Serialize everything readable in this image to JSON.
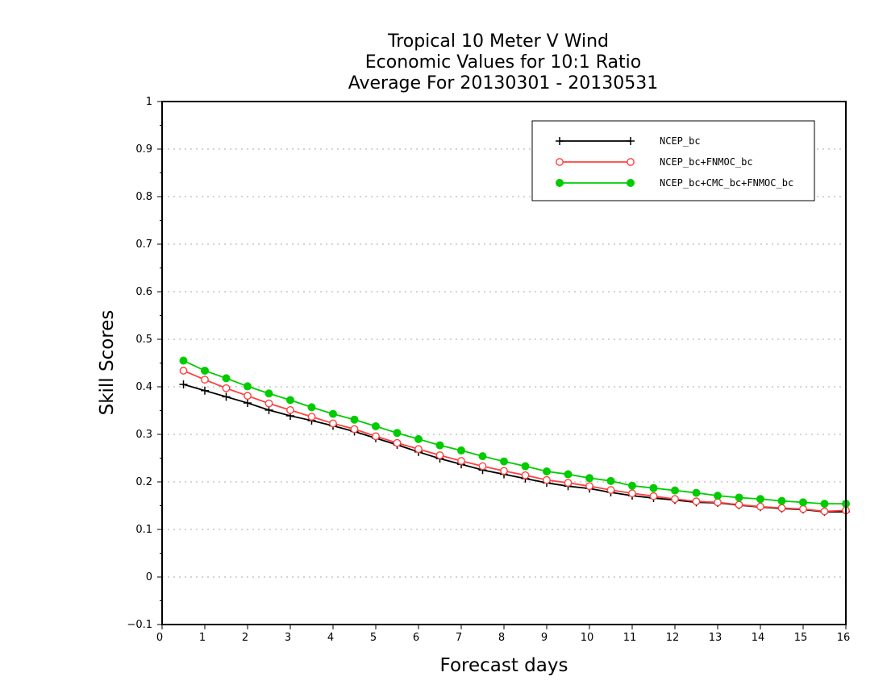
{
  "chart_data": {
    "type": "line",
    "title_lines": [
      "Tropical 10 Meter V Wind",
      "Economic Values for 10:1 Ratio",
      "Average For 20130301 - 20130531"
    ],
    "xlabel": "Forecast days",
    "ylabel": "Skill Scores",
    "xlim": [
      0,
      16
    ],
    "ylim": [
      -0.1,
      1
    ],
    "x_ticks": [
      "0",
      "1",
      "2",
      "3",
      "4",
      "5",
      "6",
      "7",
      "8",
      "9",
      "10",
      "11",
      "12",
      "13",
      "14",
      "15",
      "16"
    ],
    "y_ticks": [
      "−0.1",
      "0",
      "0.1",
      "0.2",
      "0.3",
      "0.4",
      "0.5",
      "0.6",
      "0.7",
      "0.8",
      "0.9",
      "1"
    ],
    "grid": true,
    "legend_position": "top-right",
    "x": [
      0.5,
      1,
      1.5,
      2,
      2.5,
      3,
      3.5,
      4,
      4.5,
      5,
      5.5,
      6,
      6.5,
      7,
      7.5,
      8,
      8.5,
      9,
      9.5,
      10,
      10.5,
      11,
      11.5,
      12,
      12.5,
      13,
      13.5,
      14,
      14.5,
      15,
      15.5,
      16
    ],
    "series": [
      {
        "name": "NCEP_bc",
        "color": "#000000",
        "marker": "plus",
        "values": [
          0.405,
          0.392,
          0.379,
          0.366,
          0.351,
          0.339,
          0.329,
          0.318,
          0.306,
          0.292,
          0.278,
          0.263,
          0.249,
          0.237,
          0.225,
          0.216,
          0.207,
          0.198,
          0.191,
          0.186,
          0.178,
          0.171,
          0.166,
          0.162,
          0.157,
          0.156,
          0.151,
          0.147,
          0.144,
          0.142,
          0.137,
          0.137
        ]
      },
      {
        "name": "NCEP_bc+FNMOC_bc",
        "color": "#ff4040",
        "marker": "open-circle",
        "values": [
          0.434,
          0.415,
          0.397,
          0.381,
          0.365,
          0.351,
          0.337,
          0.323,
          0.311,
          0.296,
          0.282,
          0.269,
          0.256,
          0.244,
          0.233,
          0.223,
          0.214,
          0.204,
          0.198,
          0.191,
          0.183,
          0.176,
          0.17,
          0.164,
          0.159,
          0.157,
          0.152,
          0.148,
          0.145,
          0.143,
          0.138,
          0.14
        ]
      },
      {
        "name": "NCEP_bc+CMC_bc+FNMOC_bc",
        "color": "#00cc00",
        "marker": "filled-circle",
        "values": [
          0.455,
          0.434,
          0.418,
          0.401,
          0.386,
          0.372,
          0.357,
          0.343,
          0.331,
          0.317,
          0.303,
          0.29,
          0.277,
          0.266,
          0.254,
          0.243,
          0.233,
          0.222,
          0.216,
          0.208,
          0.202,
          0.192,
          0.187,
          0.182,
          0.177,
          0.171,
          0.167,
          0.164,
          0.16,
          0.157,
          0.154,
          0.154
        ]
      }
    ]
  }
}
